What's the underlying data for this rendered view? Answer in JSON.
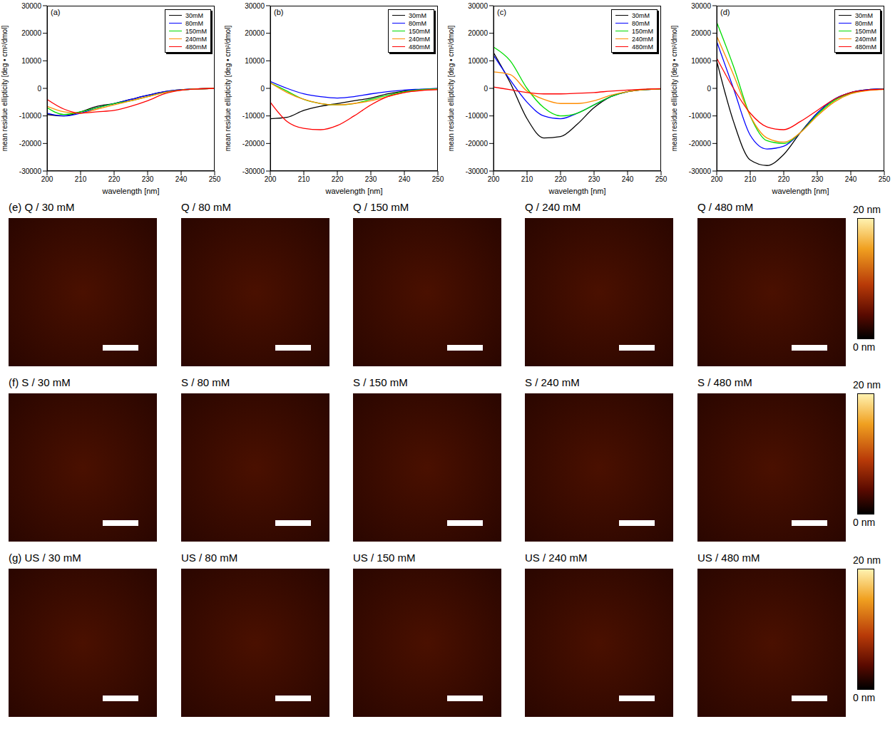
{
  "chart_data": [
    {
      "type": "line",
      "label": "(a)",
      "x_label": "wavelength [nm]",
      "y_label": "mean residue ellipticity [deg • cm²/dmol]",
      "legend": "upper right",
      "x": [
        200,
        205,
        210,
        215,
        220,
        225,
        230,
        235,
        240,
        245,
        250
      ],
      "xlim": [
        200,
        250
      ],
      "xticks": [
        200,
        210,
        220,
        230,
        240,
        250
      ],
      "ylim": [
        -30000,
        30000
      ],
      "yticks": [
        -30000,
        -20000,
        -10000,
        0,
        10000,
        20000,
        30000
      ],
      "series": [
        {
          "name": "30mM",
          "color": "#000000",
          "values": [
            -9500,
            -10000,
            -8500,
            -6500,
            -5500,
            -4000,
            -2500,
            -1200,
            -500,
            -200,
            0
          ]
        },
        {
          "name": "80mM",
          "color": "#0000ff",
          "values": [
            -9000,
            -10000,
            -9000,
            -7000,
            -5500,
            -4000,
            -2500,
            -1200,
            -500,
            -200,
            0
          ]
        },
        {
          "name": "150mM",
          "color": "#00dd00",
          "values": [
            -7000,
            -9500,
            -8500,
            -7000,
            -5500,
            -4500,
            -3000,
            -1500,
            -600,
            -200,
            0
          ]
        },
        {
          "name": "240mM",
          "color": "#ff8c00",
          "values": [
            -6500,
            -8500,
            -9000,
            -7500,
            -6000,
            -4500,
            -3000,
            -1500,
            -600,
            -200,
            0
          ]
        },
        {
          "name": "480mM",
          "color": "#ff0000",
          "values": [
            -4000,
            -7500,
            -9000,
            -8500,
            -8000,
            -6500,
            -4500,
            -2000,
            -700,
            -200,
            0
          ]
        }
      ]
    },
    {
      "type": "line",
      "label": "(b)",
      "x_label": "wavelength [nm]",
      "y_label": "mean residue ellipticity [deg • cm²/dmol]",
      "legend": "upper right",
      "x": [
        200,
        205,
        210,
        215,
        220,
        225,
        230,
        235,
        240,
        245,
        250
      ],
      "xlim": [
        200,
        250
      ],
      "xticks": [
        200,
        210,
        220,
        230,
        240,
        250
      ],
      "ylim": [
        -30000,
        30000
      ],
      "yticks": [
        -30000,
        -20000,
        -10000,
        0,
        10000,
        20000,
        30000
      ],
      "series": [
        {
          "name": "30mM",
          "color": "#000000",
          "values": [
            -11000,
            -10500,
            -8000,
            -6500,
            -5500,
            -4500,
            -3500,
            -2000,
            -1000,
            -500,
            -200
          ]
        },
        {
          "name": "80mM",
          "color": "#0000ff",
          "values": [
            2500,
            0,
            -2000,
            -3000,
            -3500,
            -3000,
            -2000,
            -1200,
            -600,
            -300,
            0
          ]
        },
        {
          "name": "150mM",
          "color": "#00dd00",
          "values": [
            2000,
            -1000,
            -4000,
            -5500,
            -6000,
            -5500,
            -4000,
            -2500,
            -1200,
            -500,
            -200
          ]
        },
        {
          "name": "240mM",
          "color": "#ff8c00",
          "values": [
            2000,
            -1500,
            -4000,
            -5500,
            -6000,
            -5500,
            -4500,
            -3000,
            -1500,
            -700,
            -300
          ]
        },
        {
          "name": "480mM",
          "color": "#ff0000",
          "values": [
            -5000,
            -12000,
            -14500,
            -15000,
            -13500,
            -10000,
            -6000,
            -3000,
            -1500,
            -800,
            -500
          ]
        }
      ]
    },
    {
      "type": "line",
      "label": "(c)",
      "x_label": "wavelength [nm]",
      "y_label": "mean residue ellipticity [deg • cm²/dmol]",
      "legend": "upper right",
      "x": [
        200,
        205,
        210,
        215,
        220,
        225,
        230,
        235,
        240,
        245,
        250
      ],
      "xlim": [
        200,
        250
      ],
      "xticks": [
        200,
        210,
        220,
        230,
        240,
        250
      ],
      "ylim": [
        -30000,
        30000
      ],
      "yticks": [
        -30000,
        -20000,
        -10000,
        0,
        10000,
        20000,
        30000
      ],
      "series": [
        {
          "name": "30mM",
          "color": "#000000",
          "values": [
            13000,
            2000,
            -11000,
            -18000,
            -17500,
            -13000,
            -7000,
            -3000,
            -1200,
            -500,
            -200
          ]
        },
        {
          "name": "80mM",
          "color": "#0000ff",
          "values": [
            12000,
            3000,
            -5000,
            -10000,
            -11000,
            -9000,
            -6000,
            -3000,
            -1200,
            -500,
            -200
          ]
        },
        {
          "name": "150mM",
          "color": "#00dd00",
          "values": [
            15000,
            10000,
            0,
            -7000,
            -10000,
            -9000,
            -6000,
            -3000,
            -1200,
            -500,
            -200
          ]
        },
        {
          "name": "240mM",
          "color": "#ff8c00",
          "values": [
            6000,
            5000,
            -1000,
            -4000,
            -5500,
            -5500,
            -4500,
            -2500,
            -1200,
            -500,
            -200
          ]
        },
        {
          "name": "480mM",
          "color": "#ff0000",
          "values": [
            500,
            -500,
            -1500,
            -2000,
            -2000,
            -1800,
            -1500,
            -1000,
            -600,
            -300,
            -100
          ]
        }
      ]
    },
    {
      "type": "line",
      "label": "(d)",
      "x_label": "wavelength [nm]",
      "y_label": "mean residue ellipticity [deg • cm²/dmol]",
      "legend": "upper right",
      "x": [
        200,
        205,
        210,
        215,
        220,
        225,
        230,
        235,
        240,
        245,
        250
      ],
      "xlim": [
        200,
        250
      ],
      "xticks": [
        200,
        210,
        220,
        230,
        240,
        250
      ],
      "ylim": [
        -30000,
        30000
      ],
      "yticks": [
        -30000,
        -20000,
        -10000,
        0,
        10000,
        20000,
        30000
      ],
      "series": [
        {
          "name": "30mM",
          "color": "#000000",
          "values": [
            10000,
            -12000,
            -26000,
            -28000,
            -24000,
            -16000,
            -9000,
            -4000,
            -1500,
            -500,
            -200
          ]
        },
        {
          "name": "80mM",
          "color": "#0000ff",
          "values": [
            17000,
            0,
            -17000,
            -22000,
            -21000,
            -16000,
            -9000,
            -4000,
            -1500,
            -500,
            -200
          ]
        },
        {
          "name": "150mM",
          "color": "#00dd00",
          "values": [
            24000,
            8000,
            -10000,
            -19000,
            -20000,
            -16000,
            -9500,
            -4500,
            -1800,
            -700,
            -300
          ]
        },
        {
          "name": "240mM",
          "color": "#ff8c00",
          "values": [
            19000,
            5000,
            -10000,
            -18000,
            -19500,
            -16000,
            -10000,
            -5000,
            -2000,
            -800,
            -400
          ]
        },
        {
          "name": "480mM",
          "color": "#ff0000",
          "values": [
            11000,
            0,
            -9000,
            -14000,
            -15000,
            -12000,
            -8000,
            -4000,
            -1500,
            -600,
            -300
          ]
        }
      ]
    }
  ],
  "afm_rows": [
    {
      "panels": [
        "(e) Q / 30 mM",
        "Q / 80 mM",
        "Q / 150 mM",
        "Q / 240 mM",
        "Q / 480 mM"
      ],
      "colorbar": {
        "range": [
          0,
          20
        ],
        "ticks": [
          {
            "value": 20,
            "label": "20 nm"
          },
          {
            "value": 0,
            "label": "0 nm"
          }
        ]
      }
    },
    {
      "panels": [
        "(f) S / 30 mM",
        "S / 80 mM",
        "S / 150 mM",
        "S / 240 mM",
        "S / 480 mM"
      ],
      "colorbar": {
        "range": [
          0,
          20
        ],
        "ticks": [
          {
            "value": 20,
            "label": "20 nm"
          },
          {
            "value": 0,
            "label": "0 nm"
          }
        ]
      }
    },
    {
      "panels": [
        "(g) US / 30 mM",
        "US / 80 mM",
        "US / 150 mM",
        "US / 240 mM",
        "US / 480 mM"
      ],
      "colorbar": {
        "range": [
          0,
          20
        ],
        "ticks": [
          {
            "value": 20,
            "label": "20 nm"
          },
          {
            "value": 0,
            "label": "0 nm"
          }
        ]
      }
    }
  ]
}
